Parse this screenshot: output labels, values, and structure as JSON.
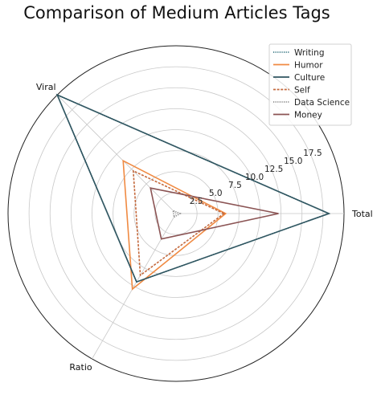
{
  "chart_data": {
    "type": "radar",
    "title": "Comparison of Medium Articles Tags",
    "axes": [
      "Total",
      "Viral",
      "Ratio"
    ],
    "r_ticks": [
      2.5,
      5.0,
      7.5,
      10.0,
      12.5,
      15.0,
      17.5
    ],
    "r_tick_labels": [
      "2.5",
      "5.0",
      "7.5",
      "10.0",
      "12.5",
      "15.0",
      "17.5"
    ],
    "rlim": [
      0,
      20
    ],
    "grid": true,
    "legend_position": "top-right",
    "series": [
      {
        "name": "Writing",
        "values": [
          18.2,
          20.0,
          9.4
        ],
        "color": "#3c7a86",
        "style": "dotted"
      },
      {
        "name": "Humor",
        "values": [
          5.9,
          8.9,
          10.4
        ],
        "color": "#f08a42",
        "style": "solid"
      },
      {
        "name": "Culture",
        "values": [
          18.2,
          20.0,
          9.4
        ],
        "color": "#2f5560",
        "style": "solid"
      },
      {
        "name": "Self",
        "values": [
          5.7,
          7.2,
          8.5
        ],
        "color": "#c46a3e",
        "style": "dashed"
      },
      {
        "name": "Data Science",
        "values": [
          0.5,
          0.5,
          0.5
        ],
        "color": "#8c8c8c",
        "style": "dotted"
      },
      {
        "name": "Money",
        "values": [
          12.2,
          4.3,
          3.5
        ],
        "color": "#8b5454",
        "style": "solid"
      }
    ]
  }
}
